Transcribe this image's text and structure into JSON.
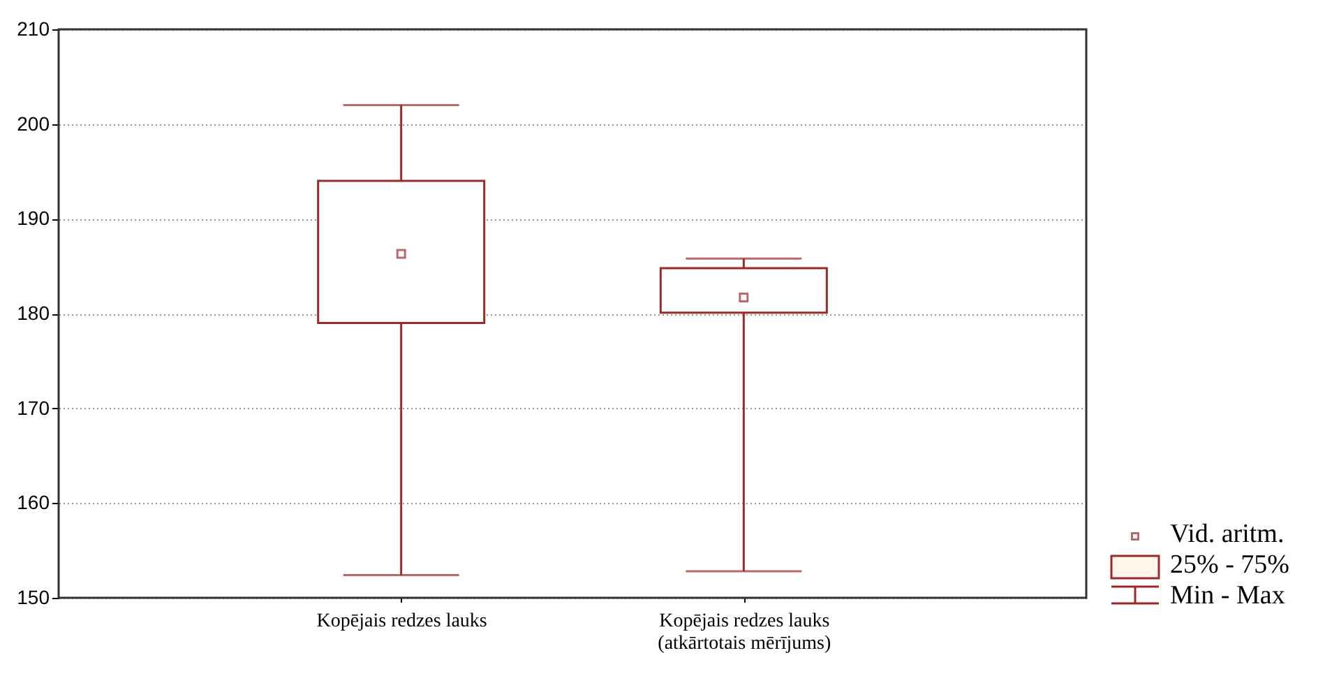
{
  "chart_data": {
    "type": "box",
    "categories": [
      "Kopējais redzes lauks",
      "Kopējais redzes lauks\n(atkārtotais mērījums)"
    ],
    "series": [
      {
        "color": "#9b2a2a",
        "boxes": [
          {
            "low": 152.4,
            "q1": 179,
            "q3": 194,
            "high": 202,
            "mean": 186.3
          },
          {
            "low": 152.8,
            "q1": 180.1,
            "q3": 184.8,
            "high": 185.8,
            "mean": 181.7
          }
        ]
      }
    ],
    "ylim": [
      150,
      210
    ],
    "yticks": [
      150,
      160,
      170,
      180,
      190,
      200,
      210
    ],
    "grid": "y",
    "annotations": [
      "Vid. aritm.",
      "25% - 75%",
      "Min - Max"
    ]
  }
}
